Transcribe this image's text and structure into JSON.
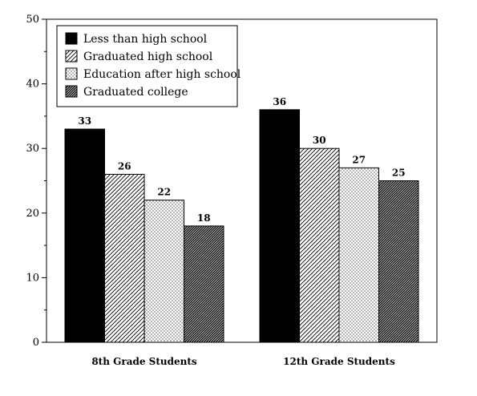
{
  "chart_data": {
    "type": "bar",
    "categories": [
      "8th Grade Students",
      "12th Grade Students"
    ],
    "series": [
      {
        "name": "Less than high school",
        "values": [
          33,
          36
        ],
        "pattern": "solid"
      },
      {
        "name": "Graduated high school",
        "values": [
          26,
          30
        ],
        "pattern": "light-diagonal"
      },
      {
        "name": "Education after high school",
        "values": [
          22,
          27
        ],
        "pattern": "dots"
      },
      {
        "name": "Graduated college",
        "values": [
          18,
          25
        ],
        "pattern": "dense-diagonal"
      }
    ],
    "ylim": [
      0,
      50
    ],
    "yticks": [
      0,
      10,
      20,
      30,
      40,
      50
    ],
    "ytick_labels": [
      "0",
      "10",
      "20",
      "30",
      "40",
      "50"
    ],
    "data_labels": [
      [
        "33",
        "26",
        "22",
        "18"
      ],
      [
        "36",
        "30",
        "27",
        "25"
      ]
    ],
    "grid": false,
    "legend_position": "top-left",
    "colors": {
      "bar_stroke": "#000000",
      "fill": "#000000",
      "background": "#ffffff"
    }
  }
}
